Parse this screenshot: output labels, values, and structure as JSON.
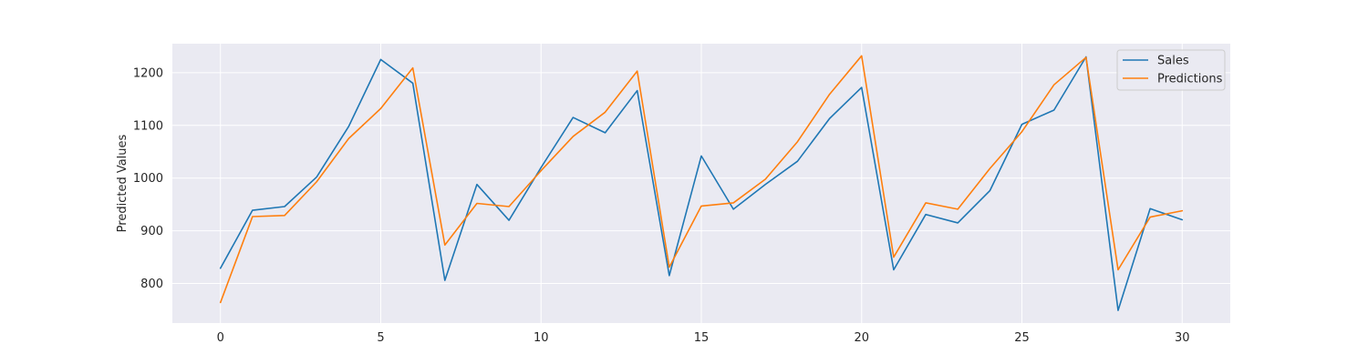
{
  "chart_data": {
    "type": "line",
    "title": "",
    "xlabel": "",
    "ylabel": "Predicted Values",
    "xlim": [
      -1.5,
      31.5
    ],
    "ylim": [
      725,
      1255
    ],
    "x_ticks": [
      0,
      5,
      10,
      15,
      20,
      25,
      30
    ],
    "y_ticks": [
      800,
      900,
      1000,
      1100,
      1200
    ],
    "grid": true,
    "legend_position": "top-right",
    "x": [
      0,
      1,
      2,
      3,
      4,
      5,
      6,
      7,
      8,
      9,
      10,
      11,
      12,
      13,
      14,
      15,
      16,
      17,
      18,
      19,
      20,
      21,
      22,
      23,
      24,
      25,
      26,
      27,
      28,
      29,
      30
    ],
    "series": [
      {
        "name": "Sales",
        "color": "#1f77b4",
        "values": [
          829,
          939,
          946,
          1002,
          1098,
          1225,
          1180,
          806,
          988,
          920,
          1020,
          1115,
          1086,
          1166,
          815,
          1042,
          941,
          988,
          1032,
          1113,
          1172,
          826,
          931,
          915,
          976,
          1102,
          1129,
          1230,
          749,
          942,
          921
        ]
      },
      {
        "name": "Predictions",
        "color": "#ff7f0e",
        "values": [
          764,
          927,
          929,
          993,
          1075,
          1132,
          1209,
          873,
          952,
          946,
          1014,
          1079,
          1125,
          1203,
          831,
          947,
          953,
          998,
          1069,
          1159,
          1232,
          850,
          953,
          941,
          1018,
          1088,
          1177,
          1229,
          826,
          926,
          938
        ]
      }
    ]
  }
}
